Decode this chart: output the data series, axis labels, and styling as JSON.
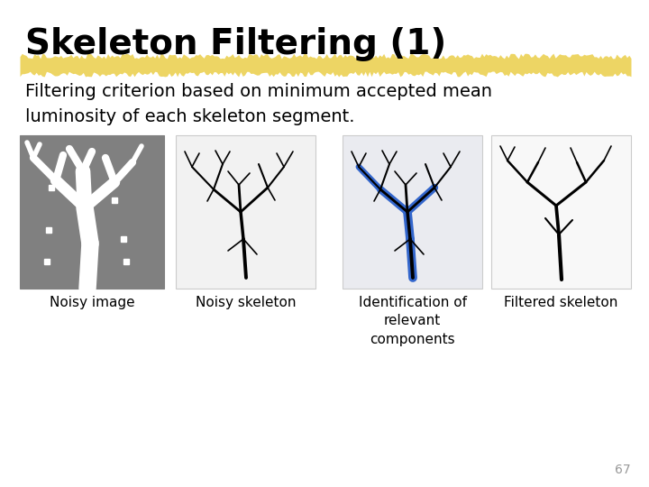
{
  "title": "Skeleton Filtering (1)",
  "body_text": "Filtering criterion based on minimum accepted mean\nluminosity of each skeleton segment.",
  "background_color": "#ffffff",
  "title_color": "#000000",
  "title_fontsize": 28,
  "body_fontsize": 14,
  "highlight_color": "#e8c830",
  "highlight_alpha": 0.75,
  "page_number": "67",
  "labels": [
    "Noisy image",
    "Noisy skeleton",
    "Identification of\nrelevant\ncomponents",
    "Filtered skeleton"
  ],
  "label_fontsize": 11,
  "panel_bg_colors": [
    "#808080",
    "#f2f2f2",
    "#eaebf0",
    "#f8f8f8"
  ],
  "panel_border_colors": [
    "#808080",
    "#cccccc",
    "#cccccc",
    "#cccccc"
  ],
  "blue_color": "#3366cc"
}
